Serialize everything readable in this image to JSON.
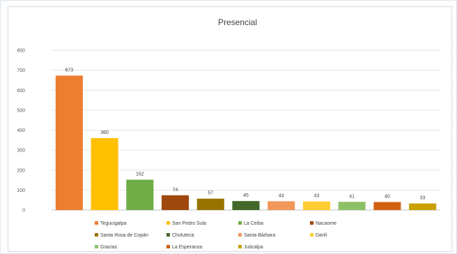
{
  "chart_data": {
    "type": "bar",
    "title": "Presencial",
    "xlabel": "",
    "ylabel": "",
    "categories": [
      "Tegucigalpa",
      "San Pedro Sula",
      "La Ceiba",
      "Nacaome",
      "Santa Rosa de Copán",
      "Choluteca",
      "Santa Bárbara",
      "Danlí",
      "Gracias",
      "La Esperanza",
      "Juticalpa"
    ],
    "values": [
      673,
      360,
      152,
      74,
      57,
      45,
      44,
      43,
      41,
      40,
      33
    ],
    "data_labels": [
      "673",
      "360",
      "152",
      "74",
      "57",
      "45",
      "44",
      "43",
      "41",
      "40",
      "33"
    ],
    "colors": [
      "#ed7d31",
      "#ffc000",
      "#70ad47",
      "#9e480e",
      "#997300",
      "#43682b",
      "#f1975a",
      "#ffcd33",
      "#8cc168",
      "#d26012",
      "#c9a000"
    ],
    "ylim": [
      0,
      800
    ],
    "yticks": [
      0,
      100,
      200,
      300,
      400,
      500,
      600,
      700,
      800
    ],
    "ytick_labels": [
      "0",
      "100",
      "200",
      "300",
      "400",
      "500",
      "600",
      "700",
      "800"
    ],
    "grid": true,
    "legend": "bottom",
    "legend_rows": 3
  }
}
